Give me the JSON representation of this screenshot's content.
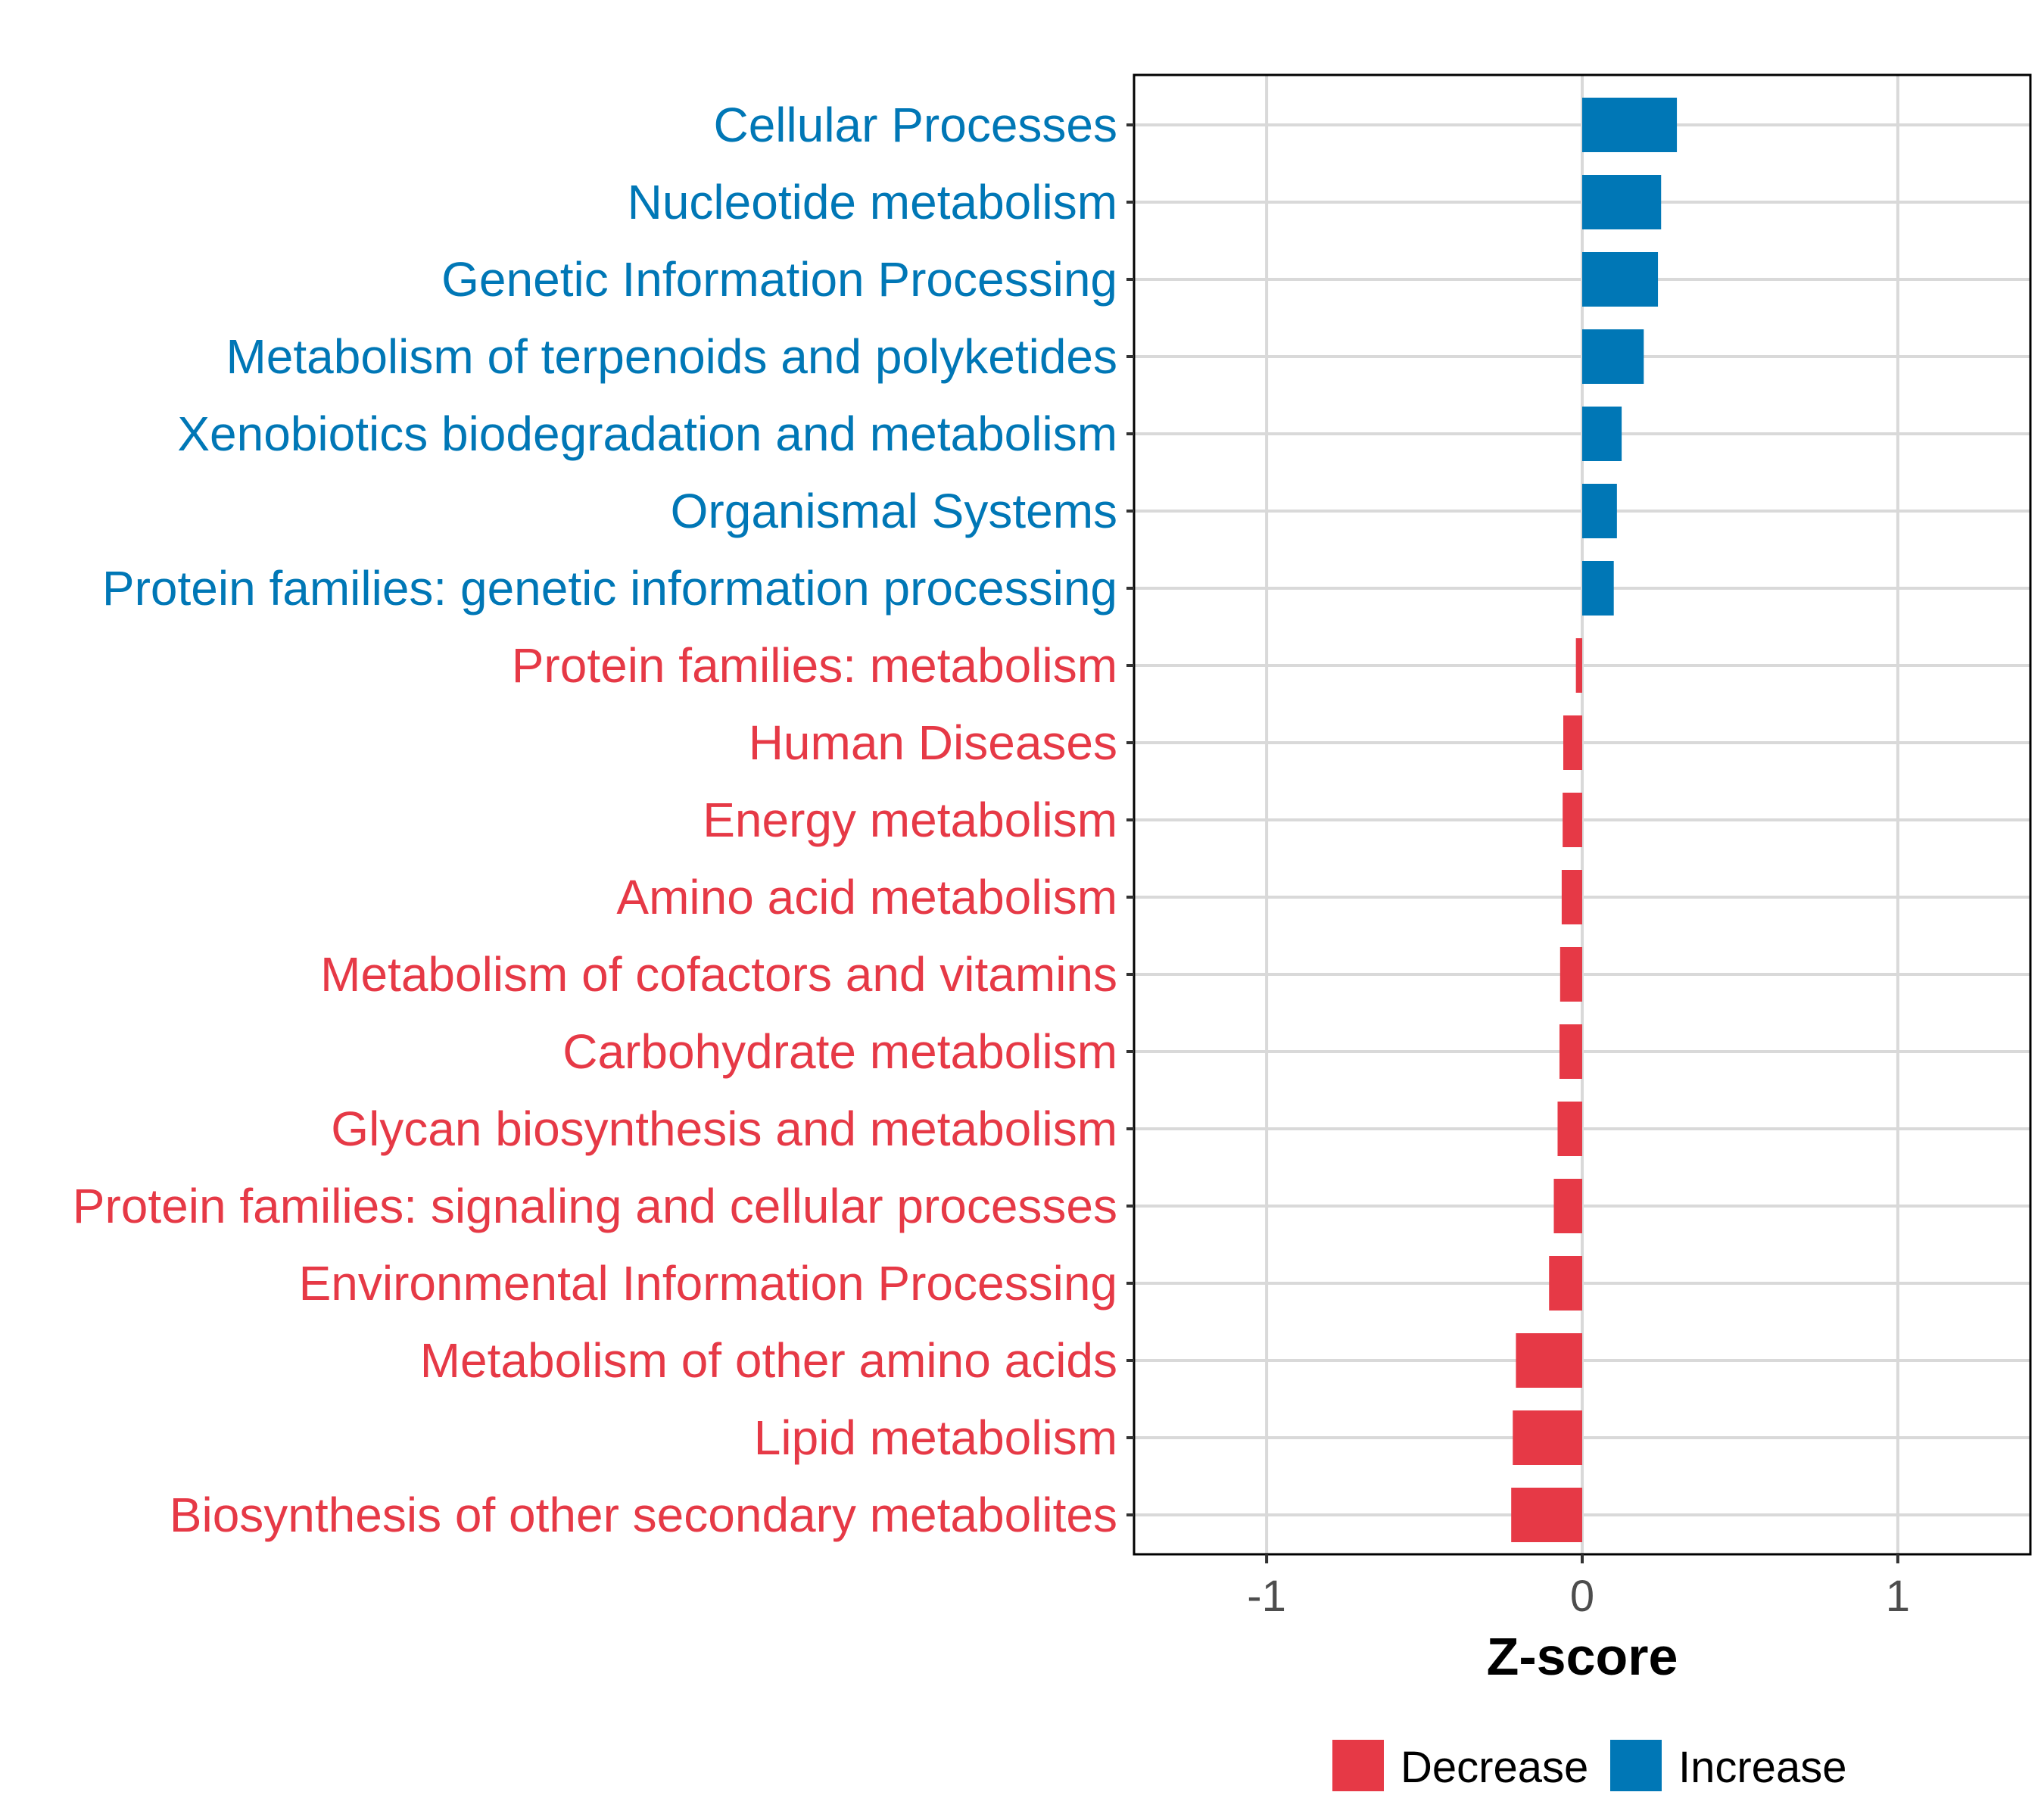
{
  "chart_data": {
    "type": "bar",
    "orientation": "horizontal",
    "title": "",
    "xlabel": "Z-score",
    "ylabel": "",
    "xlim": [
      -1.42,
      1.42
    ],
    "xticks": [
      -1,
      0,
      1
    ],
    "xtick_labels": [
      "-1",
      "0",
      "1"
    ],
    "grid": true,
    "legend_position": "bottom",
    "categories": [
      "Cellular Processes",
      "Nucleotide metabolism",
      "Genetic Information Processing",
      "Metabolism of terpenoids and polyketides",
      "Xenobiotics biodegradation and metabolism",
      "Organismal Systems",
      "Protein families: genetic information processing",
      "Protein families: metabolism",
      "Human Diseases",
      "Energy metabolism",
      "Amino acid metabolism",
      "Metabolism of cofactors and vitamins",
      "Carbohydrate metabolism",
      "Glycan biosynthesis and metabolism",
      "Protein families: signaling and cellular processes",
      "Environmental Information Processing",
      "Metabolism of other amino acids",
      "Lipid metabolism",
      "Biosynthesis of other secondary metabolites"
    ],
    "values": [
      0.3,
      0.25,
      0.24,
      0.195,
      0.125,
      0.11,
      0.1,
      -0.02,
      -0.06,
      -0.062,
      -0.065,
      -0.07,
      -0.072,
      -0.078,
      -0.09,
      -0.105,
      -0.21,
      -0.22,
      -0.225
    ],
    "groups": [
      "Increase",
      "Increase",
      "Increase",
      "Increase",
      "Increase",
      "Increase",
      "Increase",
      "Decrease",
      "Decrease",
      "Decrease",
      "Decrease",
      "Decrease",
      "Decrease",
      "Decrease",
      "Decrease",
      "Decrease",
      "Decrease",
      "Decrease",
      "Decrease"
    ],
    "legend": [
      {
        "label": "Decrease",
        "color": "#e63946"
      },
      {
        "label": "Increase",
        "color": "#0077b6"
      }
    ]
  },
  "colors": {
    "Increase": "#0077b6",
    "Decrease": "#e63946",
    "grid": "#d9d9d9",
    "axis": "#000000"
  }
}
